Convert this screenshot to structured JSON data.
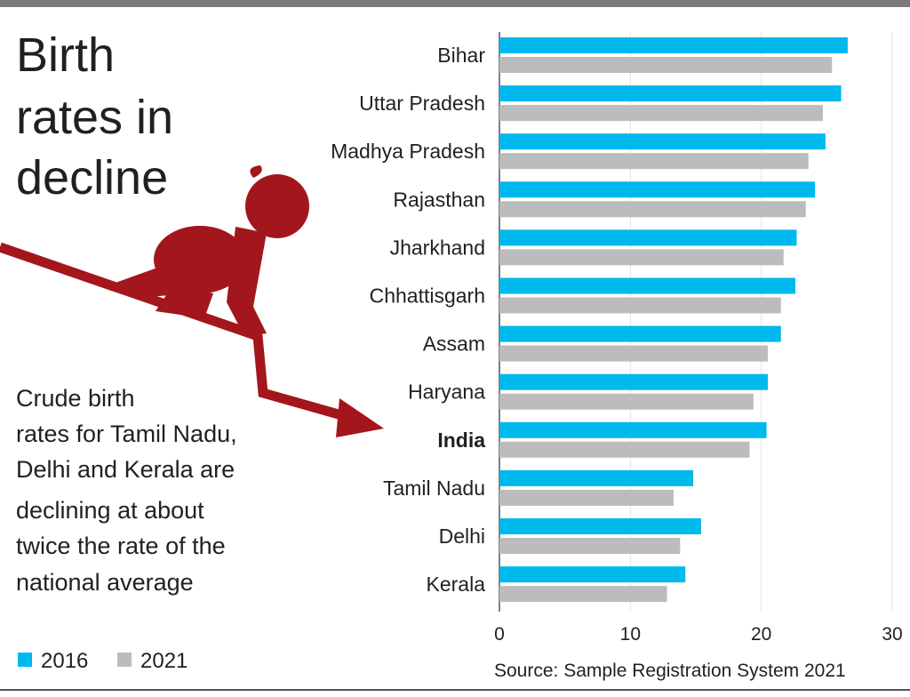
{
  "title_lines": [
    "Birth",
    "rates in",
    "decline"
  ],
  "description_lines": [
    "Crude birth",
    "rates for Tamil Nadu,",
    "Delhi and Kerala are",
    "declining at about",
    "twice the rate of the",
    "national average"
  ],
  "colors": {
    "series_2016": "#00b9ec",
    "series_2021": "#bcbcbe",
    "accent": "#a3161c",
    "text": "#231f20"
  },
  "icons": [
    "baby-crawling-silhouette",
    "downward-arrow"
  ],
  "chart_data": {
    "type": "bar",
    "orientation": "horizontal",
    "categories": [
      "Bihar",
      "Uttar Pradesh",
      "Madhya Pradesh",
      "Rajasthan",
      "Jharkhand",
      "Chhattisgarh",
      "Assam",
      "Haryana",
      "India",
      "Tamil Nadu",
      "Delhi",
      "Kerala"
    ],
    "highlight_category": "India",
    "series": [
      {
        "name": "2016",
        "values": [
          26.6,
          26.1,
          24.9,
          24.1,
          22.7,
          22.6,
          21.5,
          20.5,
          20.4,
          14.8,
          15.4,
          14.2
        ]
      },
      {
        "name": "2021",
        "values": [
          25.4,
          24.7,
          23.6,
          23.4,
          21.7,
          21.5,
          20.5,
          19.4,
          19.1,
          13.3,
          13.8,
          12.8
        ]
      }
    ],
    "xlim": [
      0,
      30
    ],
    "xticks": [
      "0",
      "10",
      "20",
      "30"
    ],
    "grid": true,
    "legend_placement": "bottom-left",
    "source": "Source: Sample Registration System 2021"
  }
}
